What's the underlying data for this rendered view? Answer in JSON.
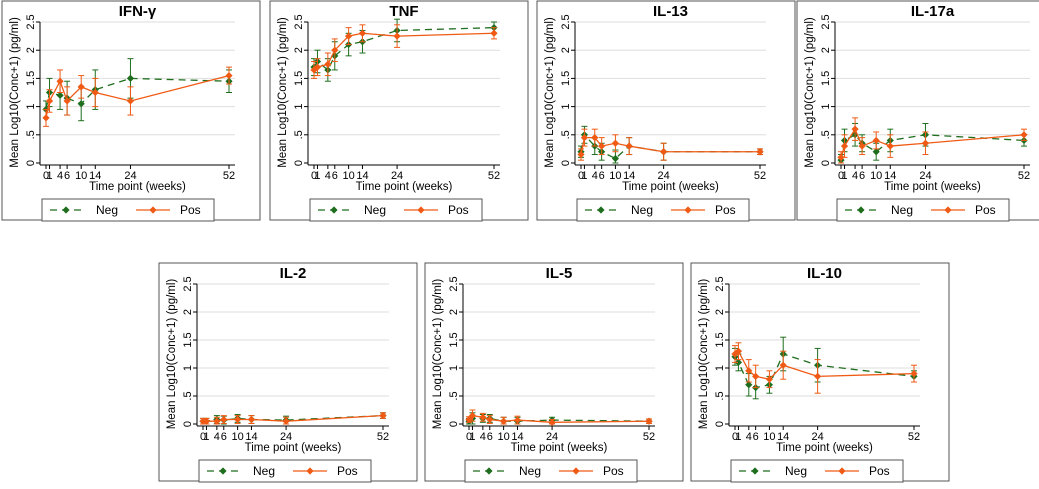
{
  "colors": {
    "neg": "#1e6e1e",
    "pos": "#f05a14",
    "axis": "#000000",
    "grid": "#dedede",
    "frame": "#555555"
  },
  "chart_data": [
    {
      "type": "line",
      "title": "IFN-γ",
      "xlabel": "Time point (weeks)",
      "ylabel": "Mean Log10(Conc+1) (pg/ml)",
      "xlim": [
        0,
        52
      ],
      "ylim": [
        0,
        2.5
      ],
      "x_ticks": [
        {
          "v": 0,
          "t": "0"
        },
        {
          "v": 1,
          "t": "1"
        },
        {
          "v": 4,
          "t": "4"
        },
        {
          "v": 6,
          "t": "6"
        },
        {
          "v": 10,
          "t": "10"
        },
        {
          "v": 14,
          "t": "14"
        },
        {
          "v": 24,
          "t": "24"
        },
        {
          "v": 52,
          "t": "52"
        }
      ],
      "y_ticks": [
        {
          "v": 0,
          "t": "0"
        },
        {
          "v": 0.5,
          "t": ".5"
        },
        {
          "v": 1,
          "t": "1"
        },
        {
          "v": 1.5,
          "t": "1.5"
        },
        {
          "v": 2,
          "t": "2"
        },
        {
          "v": 2.5,
          "t": "2.5"
        }
      ],
      "x": [
        0,
        1,
        4,
        6,
        10,
        14,
        24,
        52
      ],
      "series": [
        {
          "name": "Neg",
          "values": [
            0.95,
            1.25,
            1.2,
            1.15,
            1.05,
            1.3,
            1.5,
            1.45
          ],
          "err": [
            0.15,
            0.25,
            0.25,
            0.3,
            0.3,
            0.35,
            0.35,
            0.2
          ]
        },
        {
          "name": "Pos",
          "values": [
            0.8,
            1.1,
            1.45,
            1.1,
            1.35,
            1.25,
            1.1,
            1.55
          ],
          "err": [
            0.15,
            0.2,
            0.2,
            0.25,
            0.2,
            0.25,
            0.25,
            0.15
          ]
        }
      ]
    },
    {
      "type": "line",
      "title": "TNF",
      "xlabel": "Time point (weeks)",
      "ylabel": "Mean Log10(Conc+1) (pg/ml)",
      "xlim": [
        0,
        52
      ],
      "ylim": [
        0,
        2.5
      ],
      "x_ticks": [
        {
          "v": 0,
          "t": "0"
        },
        {
          "v": 1,
          "t": "1"
        },
        {
          "v": 4,
          "t": "4"
        },
        {
          "v": 6,
          "t": "6"
        },
        {
          "v": 10,
          "t": "10"
        },
        {
          "v": 14,
          "t": "14"
        },
        {
          "v": 24,
          "t": "24"
        },
        {
          "v": 52,
          "t": "52"
        }
      ],
      "y_ticks": [
        {
          "v": 0,
          "t": "0"
        },
        {
          "v": 0.5,
          "t": ".5"
        },
        {
          "v": 1,
          "t": "1"
        },
        {
          "v": 1.5,
          "t": "1.5"
        },
        {
          "v": 2,
          "t": "2"
        },
        {
          "v": 2.5,
          "t": "2.5"
        }
      ],
      "x": [
        0,
        1,
        4,
        6,
        10,
        14,
        24,
        52
      ],
      "series": [
        {
          "name": "Neg",
          "values": [
            1.7,
            1.8,
            1.65,
            1.9,
            2.1,
            2.15,
            2.35,
            2.4
          ],
          "err": [
            0.15,
            0.2,
            0.2,
            0.25,
            0.2,
            0.2,
            0.2,
            0.1
          ]
        },
        {
          "name": "Pos",
          "values": [
            1.65,
            1.7,
            1.75,
            2.0,
            2.25,
            2.3,
            2.25,
            2.3
          ],
          "err": [
            0.15,
            0.15,
            0.2,
            0.2,
            0.15,
            0.15,
            0.2,
            0.1
          ]
        }
      ]
    },
    {
      "type": "line",
      "title": "IL-13",
      "xlabel": "Time point (weeks)",
      "ylabel": "Mean Log10(Conc+1) (pg/ml)",
      "xlim": [
        0,
        52
      ],
      "ylim": [
        0,
        2.5
      ],
      "x_ticks": [
        {
          "v": 0,
          "t": "0"
        },
        {
          "v": 1,
          "t": "1"
        },
        {
          "v": 4,
          "t": "4"
        },
        {
          "v": 6,
          "t": "6"
        },
        {
          "v": 10,
          "t": "10"
        },
        {
          "v": 14,
          "t": "14"
        },
        {
          "v": 24,
          "t": "24"
        },
        {
          "v": 52,
          "t": "52"
        }
      ],
      "y_ticks": [
        {
          "v": 0,
          "t": "0"
        },
        {
          "v": 0.5,
          "t": ".5"
        },
        {
          "v": 1,
          "t": "1"
        },
        {
          "v": 1.5,
          "t": "1.5"
        },
        {
          "v": 2,
          "t": "2"
        },
        {
          "v": 2.5,
          "t": "2.5"
        }
      ],
      "x": [
        0,
        1,
        4,
        6,
        10,
        14,
        24,
        52
      ],
      "series": [
        {
          "name": "Neg",
          "values": [
            0.2,
            0.5,
            0.3,
            0.2,
            0.08,
            0.3,
            0.2,
            0.2
          ],
          "err": [
            0.1,
            0.15,
            0.15,
            0.15,
            0.15,
            0.15,
            0.15,
            0.05
          ]
        },
        {
          "name": "Pos",
          "values": [
            0.15,
            0.45,
            0.45,
            0.3,
            0.35,
            0.3,
            0.2,
            0.2
          ],
          "err": [
            0.1,
            0.15,
            0.15,
            0.15,
            0.15,
            0.15,
            0.15,
            0.05
          ]
        }
      ]
    },
    {
      "type": "line",
      "title": "IL-17a",
      "xlabel": "Time point (weeks)",
      "ylabel": "Mean Log10(Conc+1) (pg/ml)",
      "xlim": [
        0,
        52
      ],
      "ylim": [
        0,
        2.5
      ],
      "x_ticks": [
        {
          "v": 0,
          "t": "0"
        },
        {
          "v": 1,
          "t": "1"
        },
        {
          "v": 4,
          "t": "4"
        },
        {
          "v": 6,
          "t": "6"
        },
        {
          "v": 10,
          "t": "10"
        },
        {
          "v": 14,
          "t": "14"
        },
        {
          "v": 24,
          "t": "24"
        },
        {
          "v": 52,
          "t": "52"
        }
      ],
      "y_ticks": [
        {
          "v": 0,
          "t": "0"
        },
        {
          "v": 0.5,
          "t": ".5"
        },
        {
          "v": 1,
          "t": "1"
        },
        {
          "v": 1.5,
          "t": "1.5"
        },
        {
          "v": 2,
          "t": "2"
        },
        {
          "v": 2.5,
          "t": "2.5"
        }
      ],
      "x": [
        0,
        1,
        4,
        6,
        10,
        14,
        24,
        52
      ],
      "series": [
        {
          "name": "Neg",
          "values": [
            0.05,
            0.4,
            0.5,
            0.35,
            0.2,
            0.4,
            0.5,
            0.4
          ],
          "err": [
            0.1,
            0.2,
            0.2,
            0.15,
            0.15,
            0.2,
            0.2,
            0.1
          ]
        },
        {
          "name": "Pos",
          "values": [
            0.1,
            0.3,
            0.6,
            0.3,
            0.4,
            0.3,
            0.35,
            0.5
          ],
          "err": [
            0.1,
            0.2,
            0.2,
            0.15,
            0.15,
            0.2,
            0.2,
            0.1
          ]
        }
      ]
    },
    {
      "type": "line",
      "title": "IL-2",
      "xlabel": "Time point (weeks)",
      "ylabel": "Mean Log10(Conc+1) (pg/ml)",
      "xlim": [
        0,
        52
      ],
      "ylim": [
        0,
        2.5
      ],
      "x_ticks": [
        {
          "v": 0,
          "t": "0"
        },
        {
          "v": 1,
          "t": "1"
        },
        {
          "v": 4,
          "t": "4"
        },
        {
          "v": 6,
          "t": "6"
        },
        {
          "v": 10,
          "t": "10"
        },
        {
          "v": 14,
          "t": "14"
        },
        {
          "v": 24,
          "t": "24"
        },
        {
          "v": 52,
          "t": "52"
        }
      ],
      "y_ticks": [
        {
          "v": 0,
          "t": "0"
        },
        {
          "v": 0.5,
          "t": ".5"
        },
        {
          "v": 1,
          "t": "1"
        },
        {
          "v": 1.5,
          "t": "1.5"
        },
        {
          "v": 2,
          "t": "2"
        },
        {
          "v": 2.5,
          "t": "2.5"
        }
      ],
      "x": [
        0,
        1,
        4,
        6,
        10,
        14,
        24,
        52
      ],
      "series": [
        {
          "name": "Neg",
          "values": [
            0.05,
            0.05,
            0.08,
            0.07,
            0.1,
            0.08,
            0.07,
            0.15
          ],
          "err": [
            0.05,
            0.05,
            0.07,
            0.07,
            0.07,
            0.07,
            0.07,
            0.05
          ]
        },
        {
          "name": "Pos",
          "values": [
            0.05,
            0.05,
            0.05,
            0.08,
            0.08,
            0.08,
            0.05,
            0.15
          ],
          "err": [
            0.05,
            0.05,
            0.07,
            0.07,
            0.07,
            0.07,
            0.07,
            0.05
          ]
        }
      ]
    },
    {
      "type": "line",
      "title": "IL-5",
      "xlabel": "Time point (weeks)",
      "ylabel": "Mean Log10(Conc+1) (pg/ml)",
      "xlim": [
        0,
        52
      ],
      "ylim": [
        0,
        2.5
      ],
      "x_ticks": [
        {
          "v": 0,
          "t": "0"
        },
        {
          "v": 1,
          "t": "1"
        },
        {
          "v": 4,
          "t": "4"
        },
        {
          "v": 6,
          "t": "6"
        },
        {
          "v": 10,
          "t": "10"
        },
        {
          "v": 14,
          "t": "14"
        },
        {
          "v": 24,
          "t": "24"
        },
        {
          "v": 52,
          "t": "52"
        }
      ],
      "y_ticks": [
        {
          "v": 0,
          "t": "0"
        },
        {
          "v": 0.5,
          "t": ".5"
        },
        {
          "v": 1,
          "t": "1"
        },
        {
          "v": 1.5,
          "t": "1.5"
        },
        {
          "v": 2,
          "t": "2"
        },
        {
          "v": 2.5,
          "t": "2.5"
        }
      ],
      "x": [
        0,
        1,
        4,
        6,
        10,
        14,
        24,
        52
      ],
      "series": [
        {
          "name": "Neg",
          "values": [
            0.05,
            0.1,
            0.1,
            0.1,
            0.05,
            0.05,
            0.07,
            0.05
          ],
          "err": [
            0.05,
            0.1,
            0.07,
            0.07,
            0.07,
            0.07,
            0.05,
            0.04
          ]
        },
        {
          "name": "Pos",
          "values": [
            0.08,
            0.15,
            0.12,
            0.08,
            0.05,
            0.07,
            0.03,
            0.05
          ],
          "err": [
            0.05,
            0.1,
            0.07,
            0.07,
            0.07,
            0.07,
            0.05,
            0.04
          ]
        }
      ]
    },
    {
      "type": "line",
      "title": "IL-10",
      "xlabel": "Time point (weeks)",
      "ylabel": "Mean Log10(Conc+1) (pg/ml)",
      "xlim": [
        0,
        52
      ],
      "ylim": [
        0,
        2.5
      ],
      "x_ticks": [
        {
          "v": 0,
          "t": "0"
        },
        {
          "v": 1,
          "t": "1"
        },
        {
          "v": 4,
          "t": "4"
        },
        {
          "v": 6,
          "t": "6"
        },
        {
          "v": 10,
          "t": "10"
        },
        {
          "v": 14,
          "t": "14"
        },
        {
          "v": 24,
          "t": "24"
        },
        {
          "v": 52,
          "t": "52"
        }
      ],
      "y_ticks": [
        {
          "v": 0,
          "t": "0"
        },
        {
          "v": 0.5,
          "t": ".5"
        },
        {
          "v": 1,
          "t": "1"
        },
        {
          "v": 1.5,
          "t": "1.5"
        },
        {
          "v": 2,
          "t": "2"
        },
        {
          "v": 2.5,
          "t": "2.5"
        }
      ],
      "x": [
        0,
        1,
        4,
        6,
        10,
        14,
        24,
        52
      ],
      "series": [
        {
          "name": "Neg",
          "values": [
            1.2,
            1.1,
            0.7,
            0.65,
            0.7,
            1.25,
            1.05,
            0.85
          ],
          "err": [
            0.15,
            0.15,
            0.2,
            0.2,
            0.15,
            0.3,
            0.3,
            0.1
          ]
        },
        {
          "name": "Pos",
          "values": [
            1.25,
            1.3,
            0.95,
            0.85,
            0.8,
            1.05,
            0.85,
            0.9
          ],
          "err": [
            0.15,
            0.15,
            0.2,
            0.2,
            0.15,
            0.25,
            0.3,
            0.15
          ]
        }
      ]
    }
  ]
}
